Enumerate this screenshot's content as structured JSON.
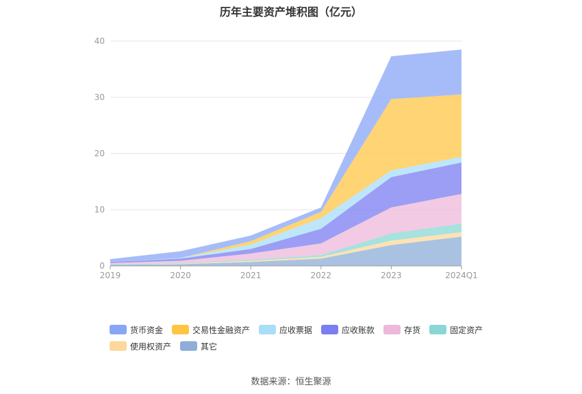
{
  "title": "历年主要资产堆积图（亿元）",
  "source": "数据来源：恒生聚源",
  "chart_data": {
    "type": "area",
    "stacked": true,
    "title": "历年主要资产堆积图（亿元）",
    "xlabel": "",
    "ylabel": "",
    "categories": [
      "2019",
      "2020",
      "2021",
      "2022",
      "2023",
      "2024Q1"
    ],
    "ylim": [
      0,
      40
    ],
    "yticks": [
      0,
      10,
      20,
      30,
      40
    ],
    "grid": true,
    "legend_position": "bottom",
    "series": [
      {
        "name": "其它",
        "color": "#8eadd8",
        "values": [
          0.2,
          0.3,
          0.7,
          1.3,
          3.7,
          5.2
        ]
      },
      {
        "name": "使用权资产",
        "color": "#fdd89a",
        "values": [
          0.0,
          0.1,
          0.2,
          0.3,
          0.8,
          0.8
        ]
      },
      {
        "name": "固定资产",
        "color": "#8ad7d6",
        "values": [
          0.1,
          0.1,
          0.2,
          0.3,
          1.3,
          1.5
        ]
      },
      {
        "name": "存货",
        "color": "#edb8da",
        "values": [
          0.2,
          0.4,
          1.1,
          2.1,
          4.6,
          5.3
        ]
      },
      {
        "name": "应收账款",
        "color": "#7a7ef0",
        "values": [
          0.2,
          0.4,
          0.8,
          2.6,
          5.4,
          5.6
        ]
      },
      {
        "name": "应收票据",
        "color": "#a8def8",
        "values": [
          0.0,
          0.1,
          0.8,
          1.9,
          1.2,
          1.0
        ]
      },
      {
        "name": "交易性金融资产",
        "color": "#fec545",
        "values": [
          0.0,
          0.0,
          0.6,
          1.1,
          12.7,
          11.1
        ]
      },
      {
        "name": "货币资金",
        "color": "#88a5f7",
        "values": [
          0.5,
          1.2,
          1.0,
          0.8,
          7.6,
          8.0
        ]
      }
    ],
    "legend_order": [
      "货币资金",
      "交易性金融资产",
      "应收票据",
      "应收账款",
      "存货",
      "固定资产",
      "使用权资产",
      "其它"
    ]
  }
}
